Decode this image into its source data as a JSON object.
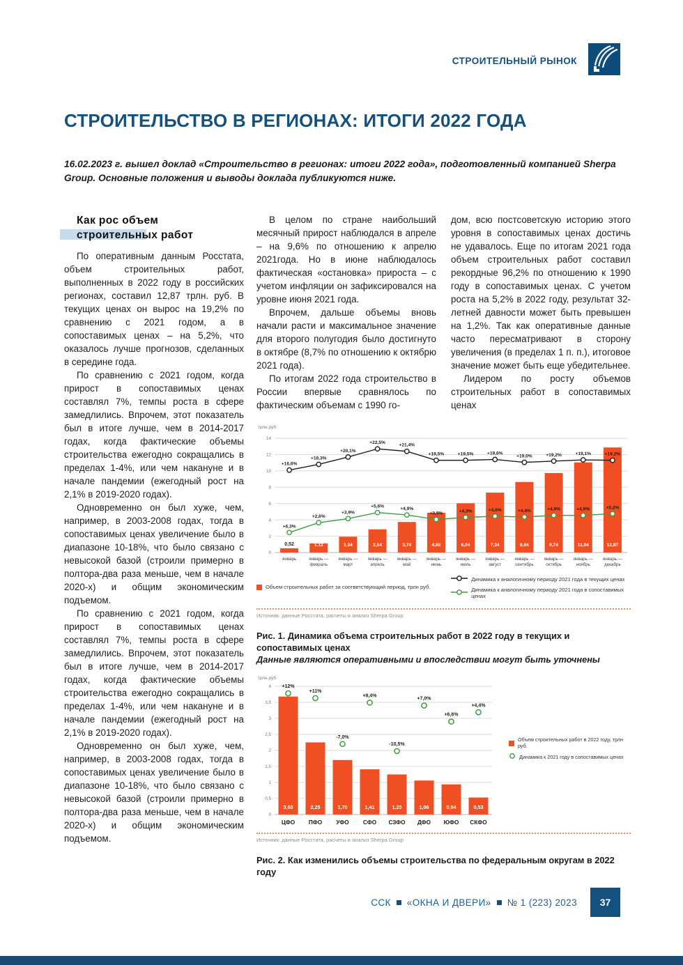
{
  "page": {
    "section_label": "СТРОИТЕЛЬНЫЙ РЫНОК",
    "title": "СТРОИТЕЛЬСТВО В РЕГИОНАХ: ИТОГИ 2022 ГОДА",
    "lede": "16.02.2023 г. вышел доклад «Строительство в регионах: итоги 2022 года», подготовленный компанией Sherpa Group. Основные положения и выводы доклада публикуются ниже.",
    "footer": {
      "parts": [
        "ССК",
        "«ОКНА И ДВЕРИ»",
        "№ 1 (223) 2023"
      ],
      "page_number": "37"
    },
    "colors": {
      "brand_blue": "#15517f",
      "bar_orange": "#f04e23",
      "line_green": "#3f9a42",
      "line_black": "#1d1d1b",
      "highlight_blue": "#c5dcec"
    }
  },
  "column1": {
    "heading": [
      "Как рос объем",
      "строительных работ"
    ],
    "paragraphs": [
      "По оперативным данным Росстата, объем строительных работ, выполненных в 2022 году в российских регионах, составил 12,87 трлн. руб. В текущих ценах он вырос на 19,2% по сравнению с 2021 годом, а в сопоставимых ценах – на 5,2%, что оказалось лучше прогнозов, сделанных в середине года.",
      "По сравнению с 2021 годом, когда прирост в сопоставимых ценах составлял 7%, темпы роста в сфере замедлились. Впрочем, этот показатель был в итоге лучше, чем в 2014-2017 годах, когда фактические объемы строительства ежегодно сокращались в пределах 1-4%, или чем накануне и в начале пандемии (ежегодный рост на 2,1% в 2019-2020 годах).",
      "Одновременно он был хуже, чем, например, в 2003-2008 годах, тогда в сопоставимых ценах увеличение было в диапазоне 10-18%, что было связано с невысокой базой (строили примерно в полтора-два раза меньше, чем в начале 2020-х) и общим экономическим подъемом.",
      "По сравнению с 2021 годом, когда прирост в сопоставимых ценах составлял 7%, темпы роста в сфере замедлились. Впрочем, этот показатель был в итоге лучше, чем в 2014-2017 годах, когда фактические объемы строительства ежегодно сокращались в пределах 1-4%, или чем накануне и в начале пандемии (ежегодный рост на 2,1% в 2019-2020 годах).",
      "Одновременно он был хуже, чем, например, в 2003-2008 годах, тогда в сопоставимых ценах увеличение было в диапазоне 10-18%, что было связано с невысокой базой (строили примерно в полтора-два раза меньше, чем в начале 2020-х) и общим экономическим подъемом."
    ]
  },
  "column2": {
    "paragraphs": [
      "В целом по стране наибольший месячный прирост наблюдался в апреле – на 9,6% по отношению к апрелю 2021года. Но в июне наблюдалось фактическая «остановка» прироста – с учетом инфляции он зафиксировался на уровне июня 2021 года.",
      "Впрочем, дальше объемы вновь начали расти и максимальное значение для второго полугодия было достигнуто в октябре (8,7% по отношению к октябрю 2021 года).",
      "По итогам 2022 года строительство в России впервые сравнялось по фактическим объемам с 1990 го-"
    ]
  },
  "column3": {
    "paragraphs": [
      "дом, всю постсоветскую историю этого уровня в сопоставимых ценах достичь не удавалось. Еще по итогам 2021 года объем строительных работ составил рекордные 96,2% по отношению к 1990 году в сопоставимых ценах. С учетом роста на 5,2% в 2022 году, результат 32-летней давности может быть превышен на 1,2%. Так как оперативные данные часто пересматривают в сторону увеличения (в пределах 1 п. п.), итоговое значение может быть еще убедительнее.",
      "Лидером по росту объемов строительных работ в сопоставимых ценах"
    ]
  },
  "figure1": {
    "caption": "Рис. 1. Динамика объема строительных работ в 2022 году в текущих и сопоставимых ценах",
    "note": "Данные являются оперативными и впоследствии могут быть уточнены",
    "source": "Источник: данные Росстата, расчеты и анализ Sherpa Group"
  },
  "figure2": {
    "caption": "Рис. 2. Как изменились объемы строительства по федеральным округам в 2022 году",
    "source": "Источник: данные Росстата, расчеты и анализ Sherpa Group"
  },
  "chart_data": [
    {
      "type": "bar",
      "title": "Динамика объема строительных работ в 2022 году в текущих и сопоставимых ценах",
      "ylabel": "трлн руб",
      "ylim": [
        0,
        14
      ],
      "yticks": [
        0,
        2,
        4,
        6,
        8,
        10,
        12,
        14
      ],
      "grid": true,
      "legend_position": "bottom",
      "categories": [
        [
          "январь"
        ],
        [
          "январь —",
          "февраль"
        ],
        [
          "январь —",
          "март"
        ],
        [
          "январь —",
          "апрель"
        ],
        [
          "январь —",
          "май"
        ],
        [
          "январь —",
          "июнь"
        ],
        [
          "январь —",
          "июль"
        ],
        [
          "январь —",
          "август"
        ],
        [
          "январь —",
          "сентябрь"
        ],
        [
          "январь —",
          "октябрь"
        ],
        [
          "январь —",
          "ноябрь"
        ],
        [
          "январь —",
          "декабрь"
        ]
      ],
      "bars": {
        "name": "Объем строительных работ за соответствующий период, трлн руб.",
        "color": "#f04e23",
        "values": [
          0.52,
          1.12,
          1.94,
          2.84,
          3.74,
          4.88,
          6.04,
          7.34,
          8.64,
          9.74,
          11.04,
          12.87
        ],
        "labels": [
          "0,52",
          "1,12",
          "1,94",
          "2,84",
          "3,74",
          "4,88",
          "6,04",
          "7,34",
          "8,64",
          "9,74",
          "11,04",
          "12,87"
        ]
      },
      "series": [
        {
          "name": "Динамика к аналогичному периоду 2021 года в текущих ценах",
          "color": "#1d1d1b",
          "labels": [
            "+16,6%",
            "+18,3%",
            "+20,1%",
            "+22,5%",
            "+21,4%",
            "+19,5%",
            "+19,5%",
            "+19,6%",
            "+19,0%",
            "+19,2%",
            "+19,1%",
            "+19,2%"
          ],
          "y_pos": [
            10.1,
            10.8,
            11.7,
            12.7,
            12.4,
            11.3,
            11.3,
            11.4,
            11.05,
            11.2,
            11.35,
            11.3
          ]
        },
        {
          "name": "Динамика к аналогичному периоду 2021 года в сопоставимых ценах",
          "color": "#3f9a42",
          "labels": [
            "+6,3%",
            "+2,6%",
            "+3,9%",
            "+5,6%",
            "+4,9%",
            "+3,9%",
            "+4,3%",
            "+4,6%",
            "+4,4%",
            "+4,9%",
            "+4,9%",
            "+5,2%"
          ],
          "y_pos": [
            2.45,
            3.65,
            4.15,
            4.9,
            4.6,
            4.05,
            4.3,
            4.45,
            4.35,
            4.55,
            4.55,
            4.75
          ]
        }
      ],
      "source": "Источник: данные Росстата, расчеты и анализ Sherpa Group"
    },
    {
      "type": "bar",
      "title": "Как изменились объемы строительства по федеральным округам в 2022 году",
      "ylabel": "трлн руб",
      "ylim": [
        0,
        4
      ],
      "ytick_values": [
        0,
        0.5,
        1,
        1.5,
        2,
        2.5,
        3,
        3.5,
        4
      ],
      "ytick_labels": [
        "0",
        "0,5",
        "1",
        "1,5",
        "2",
        "2,5",
        "3",
        "3,5",
        "4"
      ],
      "grid": true,
      "legend_position": "right",
      "categories": [
        "ЦФО",
        "ПФО",
        "УФО",
        "СФО",
        "СЗФО",
        "ДФО",
        "ЮФО",
        "СКФО"
      ],
      "bars": {
        "name": "Объем строительных работ в 2022 году, трлн руб.",
        "color": "#f04e23",
        "values": [
          3.68,
          2.25,
          1.7,
          1.41,
          1.25,
          1.06,
          0.94,
          0.53
        ],
        "labels": [
          "3,68",
          "2,25",
          "1,70",
          "1,41",
          "1,25",
          "1,06",
          "0,94",
          "0,53"
        ]
      },
      "markers": {
        "name": "Динамика к 2021 году в сопоставимых ценах",
        "color": "#3f9a42",
        "labels": [
          "+12%",
          "+11%",
          "-7,0%",
          "+8,4%",
          "-10,5%",
          "+7,0%",
          "+6,6%",
          "+4,4%"
        ],
        "y_pos": [
          3.78,
          3.63,
          2.2,
          3.49,
          1.98,
          3.4,
          2.9,
          3.19
        ]
      },
      "source": "Источник: данные Росстата, расчеты и анализ Sherpa Group"
    }
  ]
}
